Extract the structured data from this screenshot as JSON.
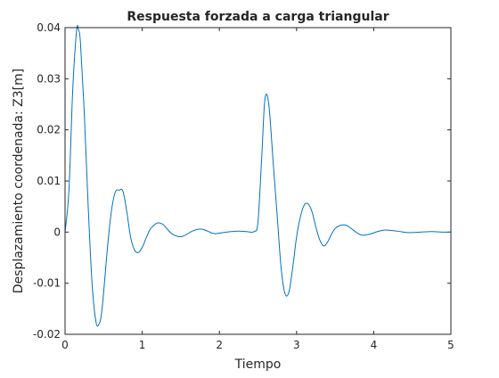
{
  "chart_data": {
    "type": "line",
    "title": "Respuesta forzada a carga triangular",
    "xlabel": "Tiempo",
    "ylabel": "Desplazamiento coordenada: Z3[m]",
    "xlim": [
      0,
      5
    ],
    "ylim": [
      -0.02,
      0.04
    ],
    "grid": false,
    "x_ticks": [
      0,
      1,
      2,
      3,
      4,
      5
    ],
    "x_tick_labels": [
      "0",
      "1",
      "2",
      "3",
      "4",
      "5"
    ],
    "y_ticks": [
      -0.02,
      -0.01,
      0,
      0.01,
      0.02,
      0.03,
      0.04
    ],
    "y_tick_labels": [
      "-0.02",
      "-0.01",
      "0",
      "0.01",
      "0.02",
      "0.03",
      "0.04"
    ],
    "series": [
      {
        "color": "#0072bd",
        "x": [
          0,
          0.05,
          0.1,
          0.15,
          0.175,
          0.2,
          0.25,
          0.3,
          0.35,
          0.4,
          0.44,
          0.48,
          0.55,
          0.6,
          0.65,
          0.7,
          0.75,
          0.8,
          0.85,
          0.9,
          0.95,
          1.0,
          1.05,
          1.1,
          1.15,
          1.2,
          1.27,
          1.33,
          1.4,
          1.5,
          1.57,
          1.65,
          1.75,
          1.83,
          1.93,
          2.05,
          2.15,
          2.25,
          2.35,
          2.45,
          2.5,
          2.55,
          2.59,
          2.64,
          2.7,
          2.75,
          2.8,
          2.85,
          2.9,
          2.95,
          3.0,
          3.05,
          3.1,
          3.15,
          3.2,
          3.25,
          3.3,
          3.35,
          3.4,
          3.45,
          3.5,
          3.55,
          3.6,
          3.65,
          3.7,
          3.78,
          3.85,
          3.95,
          4.05,
          4.15,
          4.3,
          4.45,
          4.6,
          4.75,
          4.9,
          5.0
        ],
        "y": [
          0,
          0.008,
          0.028,
          0.0395,
          0.0395,
          0.037,
          0.023,
          0.005,
          -0.01,
          -0.0175,
          -0.018,
          -0.015,
          -0.003,
          0.004,
          0.0078,
          0.0082,
          0.008,
          0.004,
          -0.001,
          -0.0035,
          -0.004,
          -0.003,
          -0.0012,
          0.0005,
          0.0013,
          0.0018,
          0.0015,
          0.0005,
          -0.0005,
          -0.0009,
          -0.0005,
          0.0002,
          0.0006,
          0.0003,
          -0.0003,
          -0.0001,
          0.0001,
          0.0002,
          0.0001,
          0.0001,
          0.002,
          0.015,
          0.026,
          0.025,
          0.013,
          0.003,
          -0.007,
          -0.012,
          -0.0118,
          -0.007,
          -0.001,
          0.003,
          0.0053,
          0.0055,
          0.004,
          0.001,
          -0.0015,
          -0.0027,
          -0.002,
          -0.0005,
          0.0007,
          0.0012,
          0.0014,
          0.0013,
          0.0008,
          -0.0001,
          -0.0006,
          -0.0004,
          0.0001,
          0.0004,
          0.0002,
          -0.0001,
          0.0,
          0.0001,
          0.0,
          0.0
        ]
      }
    ]
  }
}
